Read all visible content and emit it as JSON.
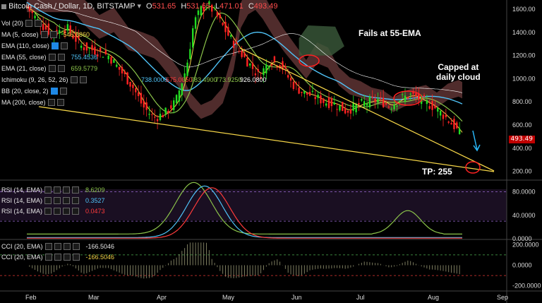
{
  "header": {
    "symbol": "Bitcoin Cash / Dollar, 1D, BITSTAMP",
    "open_label": "O",
    "open": "531.65",
    "high_label": "H",
    "high": "531.65",
    "low_label": "L",
    "low": "471.01",
    "close_label": "C",
    "close": "493.49"
  },
  "indicators": [
    {
      "label": "Vol (20)",
      "value": "",
      "color": "#e6e6e6"
    },
    {
      "label": "MA (5, close)",
      "value": "546.6860",
      "color": "#f5d547"
    },
    {
      "label": "EMA (110, close)",
      "value": "",
      "color": "#e6e6e6"
    },
    {
      "label": "EMA (55, close)",
      "value": "755.4536",
      "color": "#4fc3f7"
    },
    {
      "label": "EMA (21, close)",
      "value": "659.5779",
      "color": "#8bc34a"
    },
    {
      "label": "Ichimoku (9, 26, 52, 26)",
      "value": "",
      "color": "#e6e6e6"
    },
    {
      "label": "BB (20, close, 2)",
      "value": "",
      "color": "#e6e6e6"
    },
    {
      "label": "MA (200, close)",
      "value": "",
      "color": "#e6e6e6"
    }
  ],
  "ichimoku_values": [
    "738.0000",
    "675.0050",
    "783.4900",
    "773.9250",
    "926.0800"
  ],
  "rsi_rows": [
    {
      "label": "RSI (14, EMA)",
      "value": "8.6209",
      "color": "#8bc34a"
    },
    {
      "label": "RSI (14, EMA)",
      "value": "0.3527",
      "color": "#4fc3f7"
    },
    {
      "label": "RSI (14, EMA)",
      "value": "0.0473",
      "color": "#ff3b3b"
    }
  ],
  "cci_rows": [
    {
      "label": "CCI (20, EMA)",
      "value": "-166.5046",
      "color": "#e6e6e6"
    },
    {
      "label": "CCI (20, EMA)",
      "value": "-166.5046",
      "color": "#f5d547"
    }
  ],
  "annotations": {
    "fails": "Fails at 55-EMA",
    "capped": "Capped at\ndaily cloud",
    "tp": "TP: 255"
  },
  "last_price": "493.49",
  "colors": {
    "up": "#22dd22",
    "down": "#ff2222",
    "cloud": "#6b3b3b",
    "cloud_green": "#3b5a3b",
    "ema55": "#4fc3f7",
    "ema21": "#8bc34a",
    "ma5": "#f5d547",
    "trend": "#f5d547"
  },
  "chart_data": {
    "type": "candlestick",
    "title": "Bitcoin Cash / Dollar, 1D, BITSTAMP",
    "price_axis": {
      "ticks": [
        "1600.00",
        "1400.00",
        "1200.00",
        "1000.00",
        "800.00",
        "600.00",
        "400.00",
        "200.00"
      ],
      "range": [
        130,
        1680
      ]
    },
    "time_axis": {
      "ticks": [
        "Feb",
        "Mar",
        "Apr",
        "May",
        "Jun",
        "Jul",
        "Aug",
        "Sep"
      ]
    },
    "price_anchor_points": [
      {
        "x": 0,
        "y": 1620
      },
      {
        "x": 6,
        "y": 1500
      },
      {
        "x": 14,
        "y": 1380
      },
      {
        "x": 22,
        "y": 1440
      },
      {
        "x": 30,
        "y": 1280
      },
      {
        "x": 38,
        "y": 1240
      },
      {
        "x": 45,
        "y": 1200
      },
      {
        "x": 52,
        "y": 1060
      },
      {
        "x": 58,
        "y": 940
      },
      {
        "x": 64,
        "y": 760
      },
      {
        "x": 70,
        "y": 660
      },
      {
        "x": 76,
        "y": 700
      },
      {
        "x": 82,
        "y": 800
      },
      {
        "x": 88,
        "y": 1100
      },
      {
        "x": 92,
        "y": 1480
      },
      {
        "x": 96,
        "y": 1600
      },
      {
        "x": 100,
        "y": 1640
      },
      {
        "x": 104,
        "y": 1560
      },
      {
        "x": 110,
        "y": 1400
      },
      {
        "x": 116,
        "y": 1260
      },
      {
        "x": 122,
        "y": 1140
      },
      {
        "x": 128,
        "y": 1020
      },
      {
        "x": 134,
        "y": 1160
      },
      {
        "x": 140,
        "y": 1120
      },
      {
        "x": 146,
        "y": 960
      },
      {
        "x": 152,
        "y": 880
      },
      {
        "x": 158,
        "y": 850
      },
      {
        "x": 164,
        "y": 800
      },
      {
        "x": 170,
        "y": 780
      },
      {
        "x": 176,
        "y": 720
      },
      {
        "x": 182,
        "y": 770
      },
      {
        "x": 188,
        "y": 800
      },
      {
        "x": 194,
        "y": 820
      },
      {
        "x": 200,
        "y": 760
      },
      {
        "x": 206,
        "y": 830
      },
      {
        "x": 212,
        "y": 860
      },
      {
        "x": 218,
        "y": 810
      },
      {
        "x": 224,
        "y": 760
      },
      {
        "x": 230,
        "y": 680
      },
      {
        "x": 236,
        "y": 580
      },
      {
        "x": 240,
        "y": 493
      }
    ],
    "rsi_axis": {
      "ticks": [
        "80.0000",
        "40.0000",
        "0.0000"
      ],
      "range": [
        0,
        100
      ]
    },
    "cci_axis": {
      "ticks": [
        "200.0000",
        "0.0000",
        "-200.0000"
      ],
      "range": [
        -250,
        250
      ]
    }
  },
  "axis_labels": {
    "price": [
      "1600.00",
      "1400.00",
      "1200.00",
      "1000.00",
      "800.00",
      "600.00",
      "400.00",
      "200.00"
    ],
    "rsi": [
      "80.0000",
      "40.0000",
      "0.0000"
    ],
    "cci": [
      "200.0000",
      "0.0000",
      "-200.0000"
    ],
    "time": [
      "Feb",
      "Mar",
      "Apr",
      "May",
      "Jun",
      "Jul",
      "Aug",
      "Sep"
    ]
  }
}
